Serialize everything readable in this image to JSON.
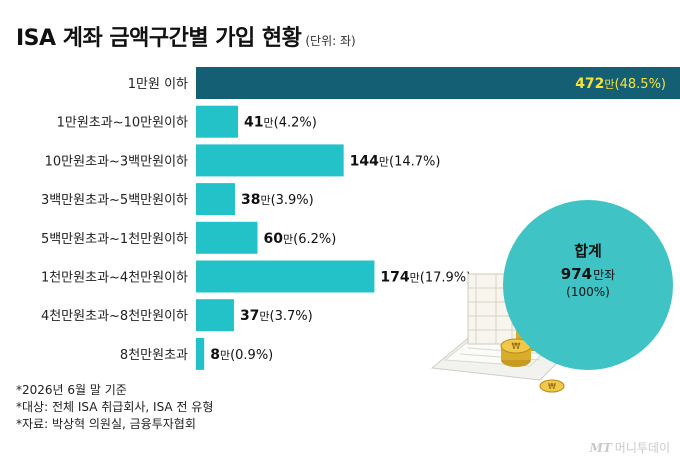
{
  "header": {
    "title": "ISA 계좌 금액구간별 가입 현황",
    "unit": "(단위: 좌)"
  },
  "colors": {
    "top_bar": "#155f75",
    "bar": "#22c2c8",
    "highlight_text": "#f5e33c",
    "circle": "#3fc3c4"
  },
  "chart_data": {
    "type": "bar",
    "orientation": "horizontal",
    "title": "ISA 계좌 금액구간별 가입 현황",
    "unit": "좌",
    "categories": [
      "1만원 이하",
      "1만원초과~10만원이하",
      "10만원초과~3백만원이하",
      "3백만원초과~5백만원이하",
      "5백만원초과~1천만원이하",
      "1천만원초과~4천만원이하",
      "4천만원초과~8천만원이하",
      "8천만원초과"
    ],
    "values": [
      472,
      41,
      144,
      38,
      60,
      174,
      37,
      8
    ],
    "value_unit": "만",
    "percents": [
      "(48.5%)",
      "(4.2%)",
      "(14.7%)",
      "(3.9%)",
      "(6.2%)",
      "(17.9%)",
      "(3.7%)",
      "(0.9%)"
    ],
    "xlim": [
      0,
      472
    ]
  },
  "total": {
    "label": "합계",
    "value": "974",
    "unit": "만좌",
    "percent": "(100%)"
  },
  "notes": [
    "*2026년 6월 말 기준",
    "*대상: 전체 ISA 취급회사, ISA 전 유형",
    "*자료: 박상혁 의원실, 금융투자협회"
  ],
  "footer": {
    "logo_mark": "MT",
    "logo_text": "머니투데이"
  }
}
